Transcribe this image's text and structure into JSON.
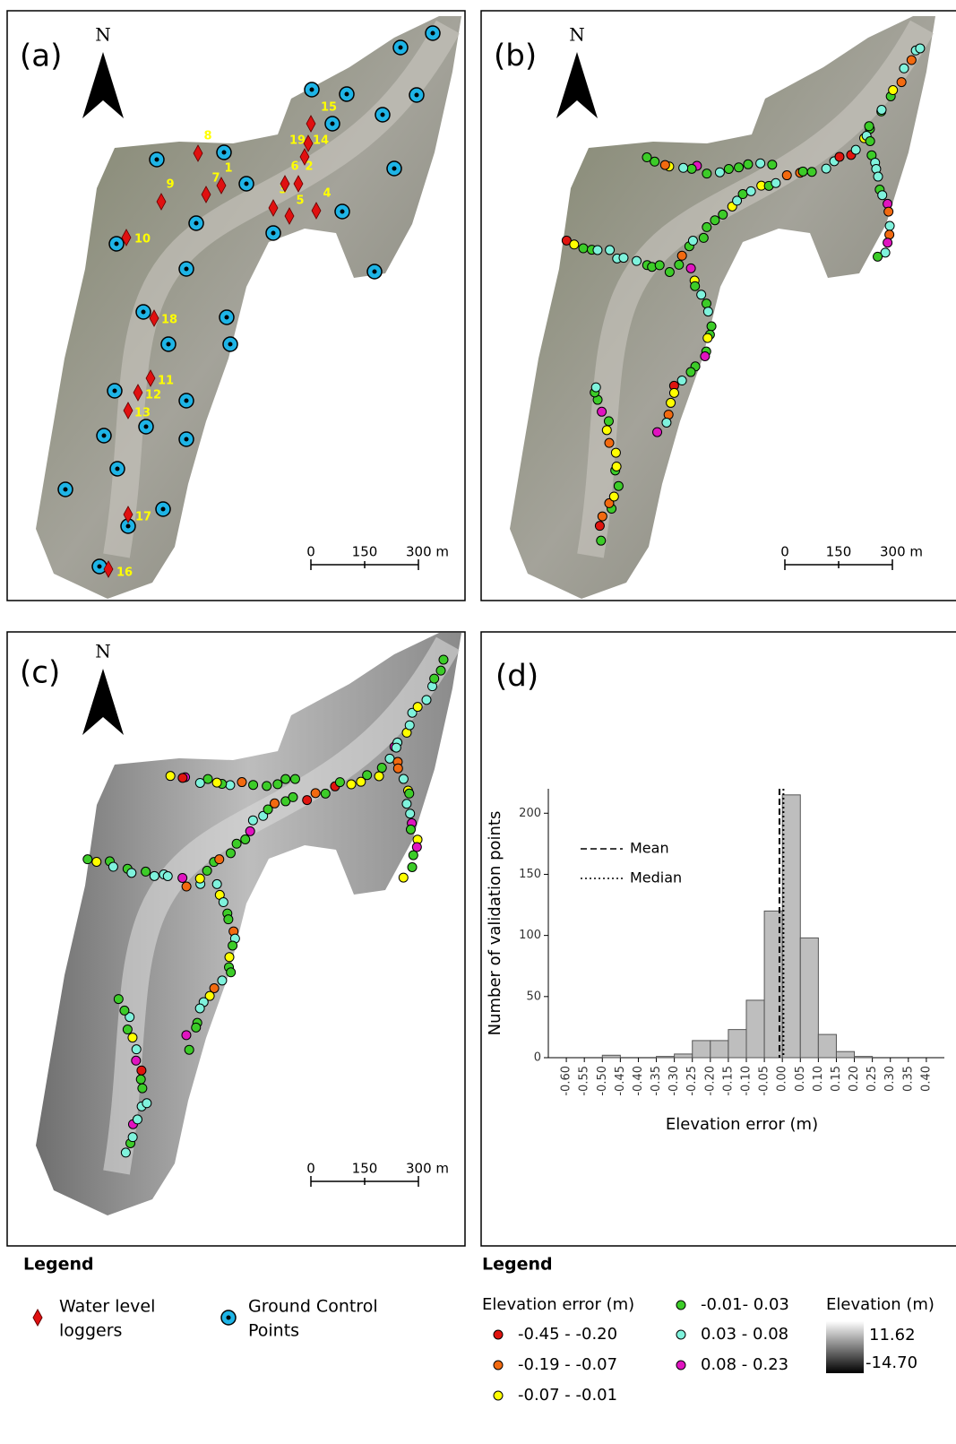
{
  "panels": [
    {
      "label": "(a)",
      "north": "N",
      "scale_labels": [
        "0",
        "150",
        "300 m"
      ]
    },
    {
      "label": "(b)",
      "north": "N",
      "scale_labels": [
        "0",
        "150",
        "300 m"
      ]
    },
    {
      "label": "(c)",
      "north": "N",
      "scale_labels": [
        "0",
        "150",
        "300 m"
      ]
    }
  ],
  "logger_labels": [
    "1",
    "2",
    "3",
    "4",
    "5",
    "6",
    "7",
    "8",
    "9",
    "10",
    "11",
    "12",
    "13",
    "14",
    "15",
    "16",
    "17",
    "18",
    "19"
  ],
  "chart_data": {
    "type": "histogram",
    "panel_label": "(d)",
    "xlabel": "Elevation error (m)",
    "ylabel": "Number of validation points",
    "color": "#bebebe",
    "bins": [
      -0.6,
      -0.55,
      -0.5,
      -0.45,
      -0.4,
      -0.35,
      -0.3,
      -0.25,
      -0.2,
      -0.15,
      -0.1,
      -0.05,
      0,
      0.05,
      0.1,
      0.15,
      0.2,
      0.25,
      0.3,
      0.35,
      0.4
    ],
    "values": [
      0,
      0,
      2,
      0,
      0,
      1,
      3,
      14,
      14,
      23,
      47,
      120,
      215,
      98,
      19,
      5,
      1,
      0,
      0,
      0
    ],
    "xlim": [
      -0.65,
      0.45
    ],
    "ylim": [
      0,
      220
    ],
    "xticks": [
      {
        "value": -0.6,
        "label": "-0.60"
      },
      {
        "value": -0.55,
        "label": "-0.55"
      },
      {
        "value": -0.5,
        "label": "-0.50"
      },
      {
        "value": -0.45,
        "label": "-0.45"
      },
      {
        "value": -0.4,
        "label": "-0.40"
      },
      {
        "value": -0.35,
        "label": "-0.35"
      },
      {
        "value": -0.3,
        "label": "-0.30"
      },
      {
        "value": -0.25,
        "label": "-0.25"
      },
      {
        "value": -0.2,
        "label": "-0.20"
      },
      {
        "value": -0.15,
        "label": "-0.15"
      },
      {
        "value": -0.1,
        "label": "-0.10"
      },
      {
        "value": -0.05,
        "label": "-0.05"
      },
      {
        "value": 0,
        "label": "0.00"
      },
      {
        "value": 0.05,
        "label": "0.05"
      },
      {
        "value": 0.1,
        "label": "0.10"
      },
      {
        "value": 0.15,
        "label": "0.15"
      },
      {
        "value": 0.2,
        "label": "0.20"
      },
      {
        "value": 0.25,
        "label": "0.25"
      },
      {
        "value": 0.3,
        "label": "0.30"
      },
      {
        "value": 0.35,
        "label": "0.35"
      },
      {
        "value": 0.4,
        "label": "0.40"
      }
    ],
    "yticks": [
      0,
      50,
      100,
      150,
      200
    ],
    "reference_lines": [
      {
        "name": "Mean",
        "value": -0.008,
        "style": "dashed"
      },
      {
        "name": "Median",
        "value": 0.003,
        "style": "dotted"
      }
    ]
  },
  "legend_left": {
    "title": "Legend",
    "loggers": [
      "Water level",
      "loggers"
    ],
    "gcp": [
      "Ground Control",
      "Points"
    ]
  },
  "legend_right": {
    "title": "Legend",
    "error_title": "Elevation error (m)",
    "classes": [
      {
        "label": "-0.45 - -0.20",
        "color": "#e0140f"
      },
      {
        "label": "-0.19 - -0.07",
        "color": "#f26a10"
      },
      {
        "label": "-0.07 - -0.01",
        "color": "#ffff00"
      },
      {
        "label": "-0.01- 0.03",
        "color": "#3ccc28"
      },
      {
        "label": "0.03 - 0.08",
        "color": "#7ff2dc"
      },
      {
        "label": "0.08 - 0.23",
        "color": "#e014c0"
      }
    ],
    "elevation_title": "Elevation (m)",
    "elevation_max": "11.62",
    "elevation_min": "-14.70"
  }
}
